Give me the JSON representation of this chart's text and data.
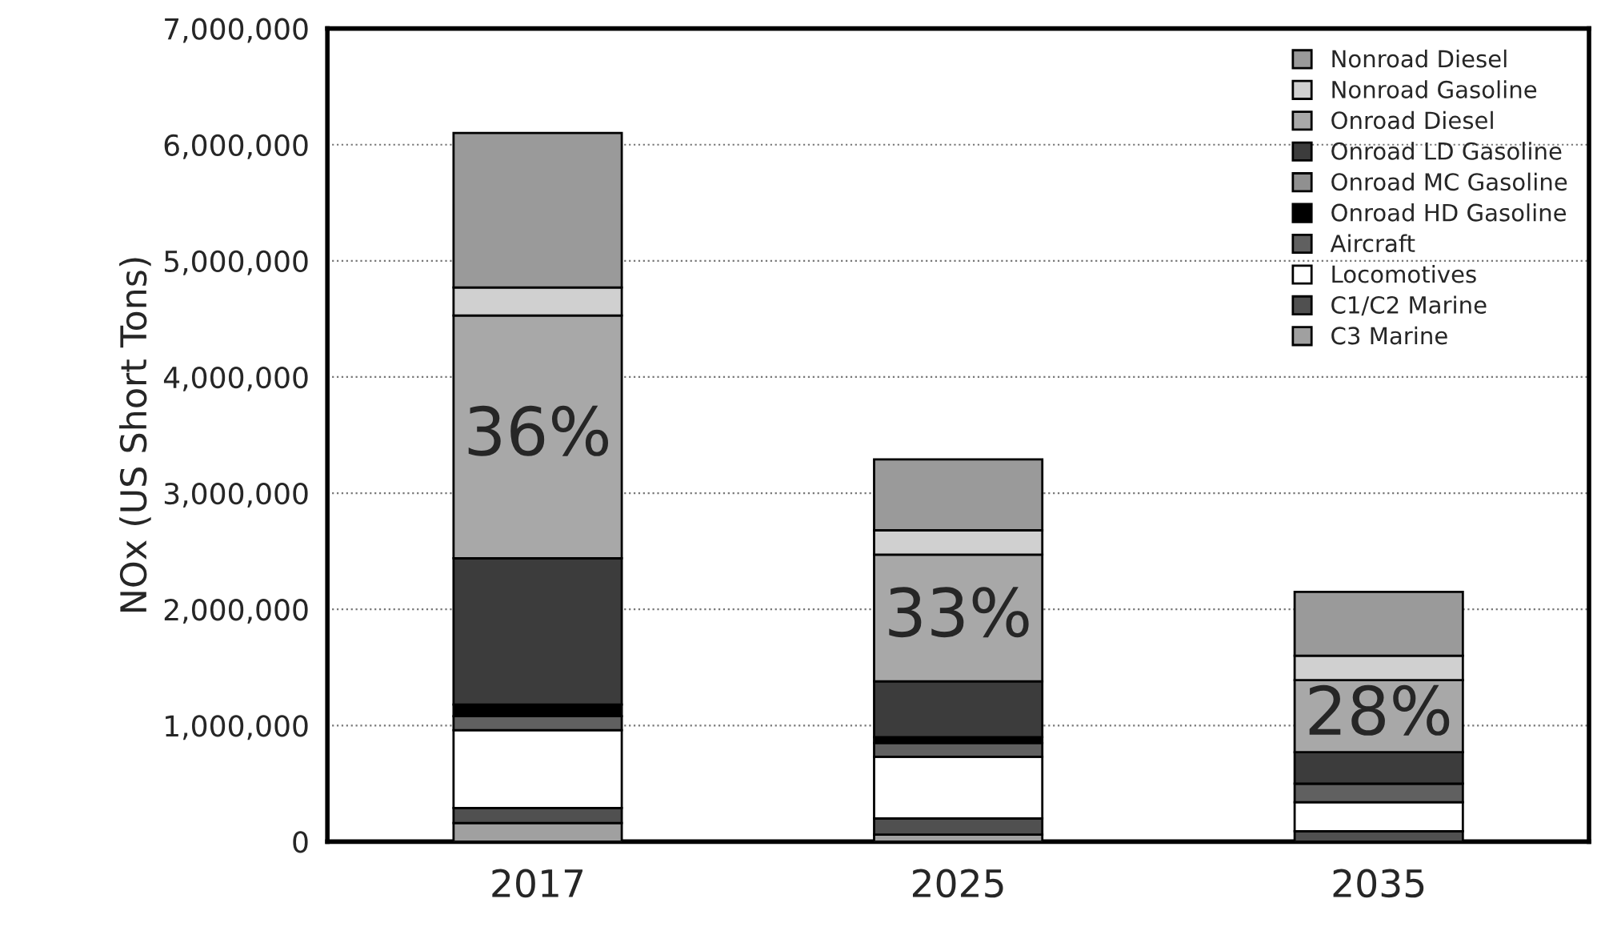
{
  "chart_data": {
    "type": "bar",
    "stacked": true,
    "ylabel": "NOx (US Short Tons)",
    "categories": [
      "2017",
      "2025",
      "2035"
    ],
    "series": [
      {
        "name": "C3 Marine",
        "color": "#a0a0a0",
        "values": [
          160000,
          60000,
          null
        ]
      },
      {
        "name": "C1/C2 Marine",
        "color": "#505050",
        "values": [
          130000,
          140000,
          90000
        ]
      },
      {
        "name": "Locomotives",
        "color": "#ffffff",
        "values": [
          670000,
          530000,
          250000
        ]
      },
      {
        "name": "Aircraft",
        "color": "#606060",
        "values": [
          120000,
          120000,
          160000
        ]
      },
      {
        "name": "Onroad HD Gasoline",
        "color": "#000000",
        "values": [
          100000,
          50000,
          null
        ]
      },
      {
        "name": "Onroad MC Gasoline",
        "color": "#909090",
        "values": [
          null,
          null,
          null
        ]
      },
      {
        "name": "Onroad LD Gasoline",
        "color": "#3c3c3c",
        "values": [
          1260000,
          480000,
          270000
        ]
      },
      {
        "name": "Onroad Diesel",
        "color": "#a8a8a8",
        "values": [
          2090000,
          1090000,
          620000
        ]
      },
      {
        "name": "Nonroad Gasoline",
        "color": "#d0d0d0",
        "values": [
          240000,
          210000,
          210000
        ]
      },
      {
        "name": "Nonroad Diesel",
        "color": "#9a9a9a",
        "values": [
          1330000,
          610000,
          550000
        ]
      }
    ],
    "ylim": [
      0,
      7000000
    ],
    "yticks": [
      {
        "value": 0,
        "label": "0"
      },
      {
        "value": 1000000,
        "label": "1,000,000"
      },
      {
        "value": 2000000,
        "label": "2,000,000"
      },
      {
        "value": 3000000,
        "label": "3,000,000"
      },
      {
        "value": 4000000,
        "label": "4,000,000"
      },
      {
        "value": 5000000,
        "label": "5,000,000"
      },
      {
        "value": 6000000,
        "label": "6,000,000"
      },
      {
        "value": 7000000,
        "label": "7,000,000"
      }
    ],
    "grid": "y",
    "legend": "top right",
    "annotations": [
      "36%",
      "33%",
      "28%"
    ]
  }
}
